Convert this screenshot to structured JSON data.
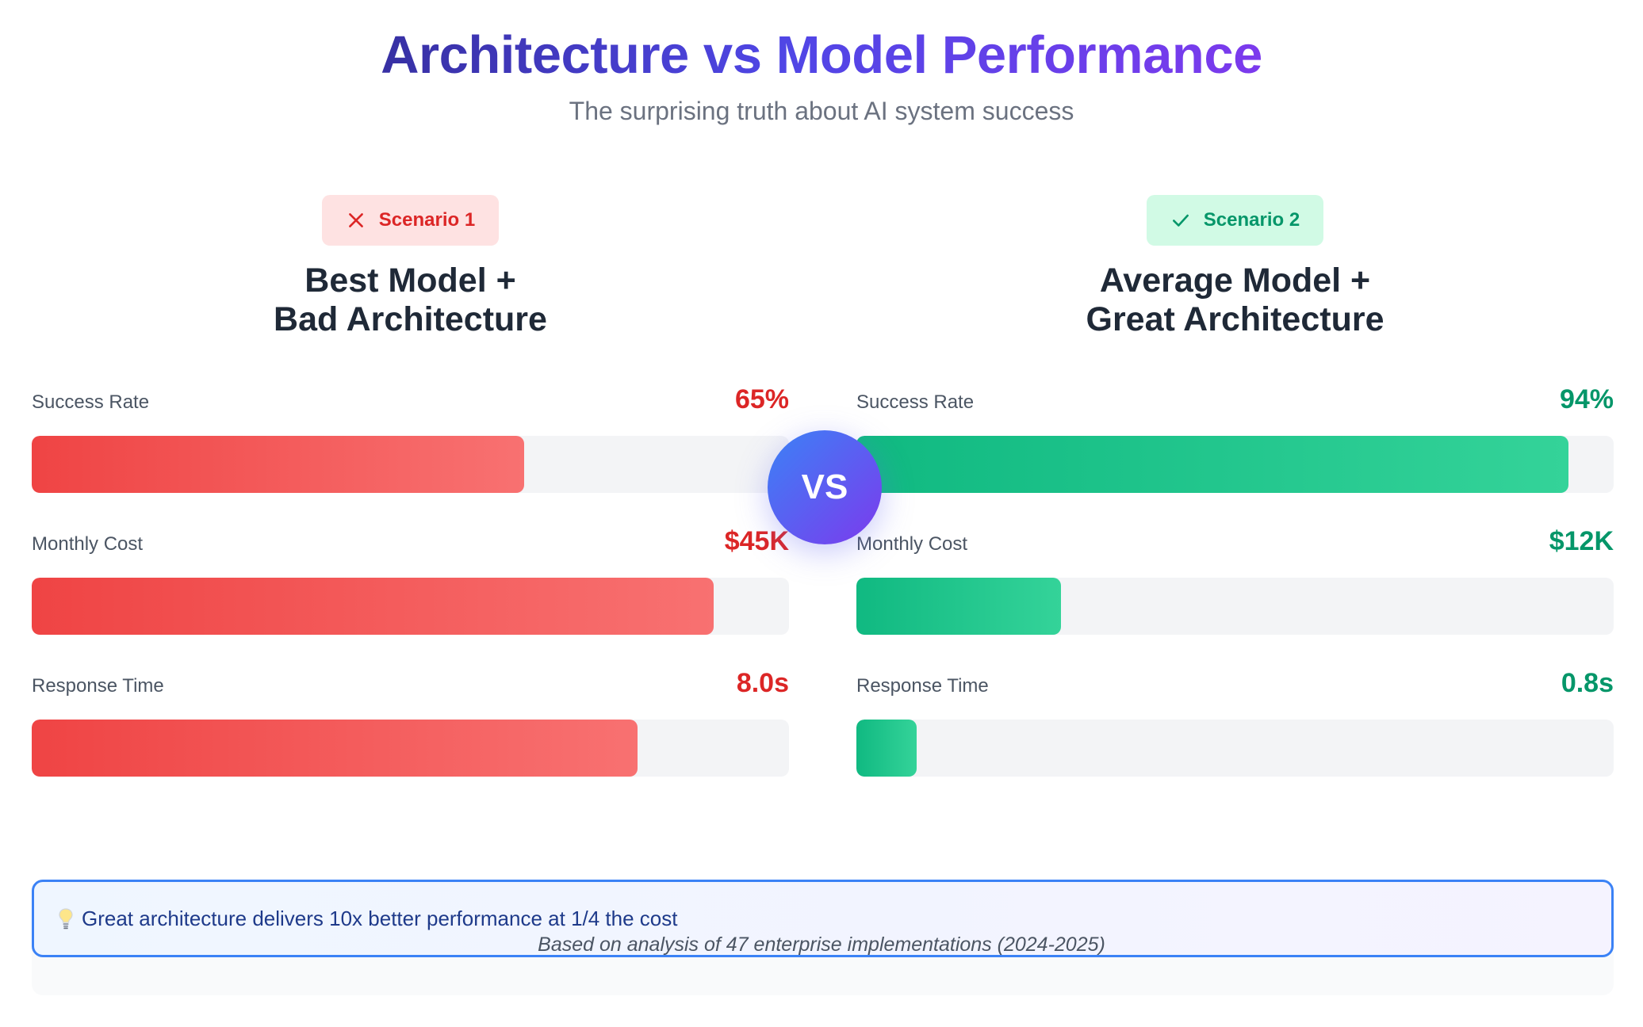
{
  "header": {
    "title": "Architecture vs Model Performance",
    "subtitle": "The surprising truth about AI system success"
  },
  "vs_label": "VS",
  "colors": {
    "bad": "#dc2626",
    "good": "#059669",
    "accent_blue": "#3b82f6",
    "accent_purple": "#7c3aed"
  },
  "chart_data": [
    {
      "type": "bar",
      "badge": {
        "label": "Scenario 1",
        "icon": "x-icon"
      },
      "title_line1": "Best Model +",
      "title_line2": "Bad Architecture",
      "metrics": [
        {
          "label": "Success Rate",
          "display": "65%",
          "fill": 0.65
        },
        {
          "label": "Monthly Cost",
          "display": "$45K",
          "fill": 0.9
        },
        {
          "label": "Response Time",
          "display": "8.0s",
          "fill": 0.8
        }
      ]
    },
    {
      "type": "bar",
      "badge": {
        "label": "Scenario 2",
        "icon": "check-icon"
      },
      "title_line1": "Average Model +",
      "title_line2": "Great Architecture",
      "metrics": [
        {
          "label": "Success Rate",
          "display": "94%",
          "fill": 0.94
        },
        {
          "label": "Monthly Cost",
          "display": "$12K",
          "fill": 0.27
        },
        {
          "label": "Response Time",
          "display": "0.8s",
          "fill": 0.08
        }
      ]
    }
  ],
  "note": {
    "icon": "lightbulb-icon",
    "text": "Great architecture delivers 10x better performance at 1/4 the cost"
  },
  "source": "Based on analysis of 47 enterprise implementations (2024-2025)"
}
